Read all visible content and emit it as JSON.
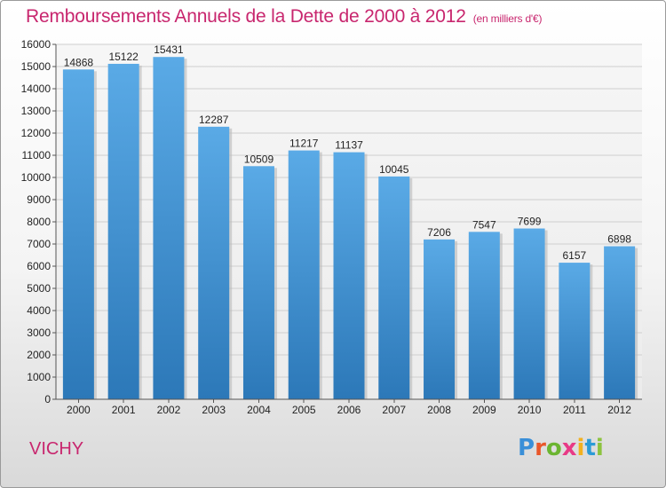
{
  "header": {
    "title": "Remboursements Annuels de la Dette de 2000 à 2012",
    "unit": "(en milliers d'€)"
  },
  "footer": {
    "commune": "VICHY",
    "logo": {
      "letters": [
        "P",
        "r",
        "o",
        "x",
        "i",
        "t",
        "i"
      ],
      "colors": [
        "#3a8fd8",
        "#e9572a",
        "#6bb531",
        "#e83a86",
        "#f2b11f",
        "#2c9bd6",
        "#8cc33f"
      ]
    }
  },
  "chart_data": {
    "type": "bar",
    "title": "Remboursements Annuels de la Dette de 2000 à 2012",
    "xlabel": "",
    "ylabel": "",
    "categories": [
      "2000",
      "2001",
      "2002",
      "2003",
      "2004",
      "2005",
      "2006",
      "2007",
      "2008",
      "2009",
      "2010",
      "2011",
      "2012"
    ],
    "values": [
      14868,
      15122,
      15431,
      12287,
      10509,
      11217,
      11137,
      10045,
      7206,
      7547,
      7699,
      6157,
      6898
    ],
    "ylim": [
      0,
      16000
    ],
    "yticks": [
      0,
      1000,
      2000,
      3000,
      4000,
      5000,
      6000,
      7000,
      8000,
      9000,
      10000,
      11000,
      12000,
      13000,
      14000,
      15000,
      16000
    ],
    "grid": true,
    "bar_color_top": "#5aaae6",
    "bar_color_bottom": "#2c78b8",
    "grid_color": "#cfcfcf"
  }
}
